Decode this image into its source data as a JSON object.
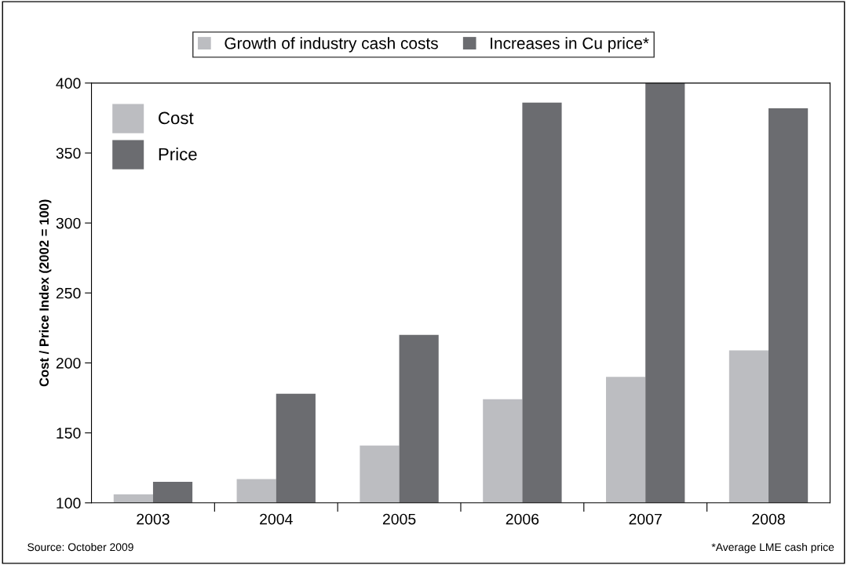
{
  "chart_data": {
    "type": "bar",
    "ylabel": "Cost / Price Index (2002 = 100)",
    "categories": [
      "2003",
      "2004",
      "2005",
      "2006",
      "2007",
      "2008"
    ],
    "series": [
      {
        "name": "Cost",
        "color": "#bcbdc1",
        "values": [
          106,
          117,
          141,
          174,
          190,
          209
        ]
      },
      {
        "name": "Price",
        "color": "#6b6c70",
        "values": [
          115,
          178,
          220,
          386,
          400,
          382
        ]
      }
    ],
    "ylim": [
      100,
      400
    ],
    "yticks": [
      100,
      150,
      200,
      250,
      300,
      350,
      400
    ],
    "legend": "top left",
    "grid": false,
    "annotations": [
      "Growth of industry cash costs",
      "Increases in Cu price*",
      "Source: October 2009",
      "*Average LME cash price"
    ]
  }
}
